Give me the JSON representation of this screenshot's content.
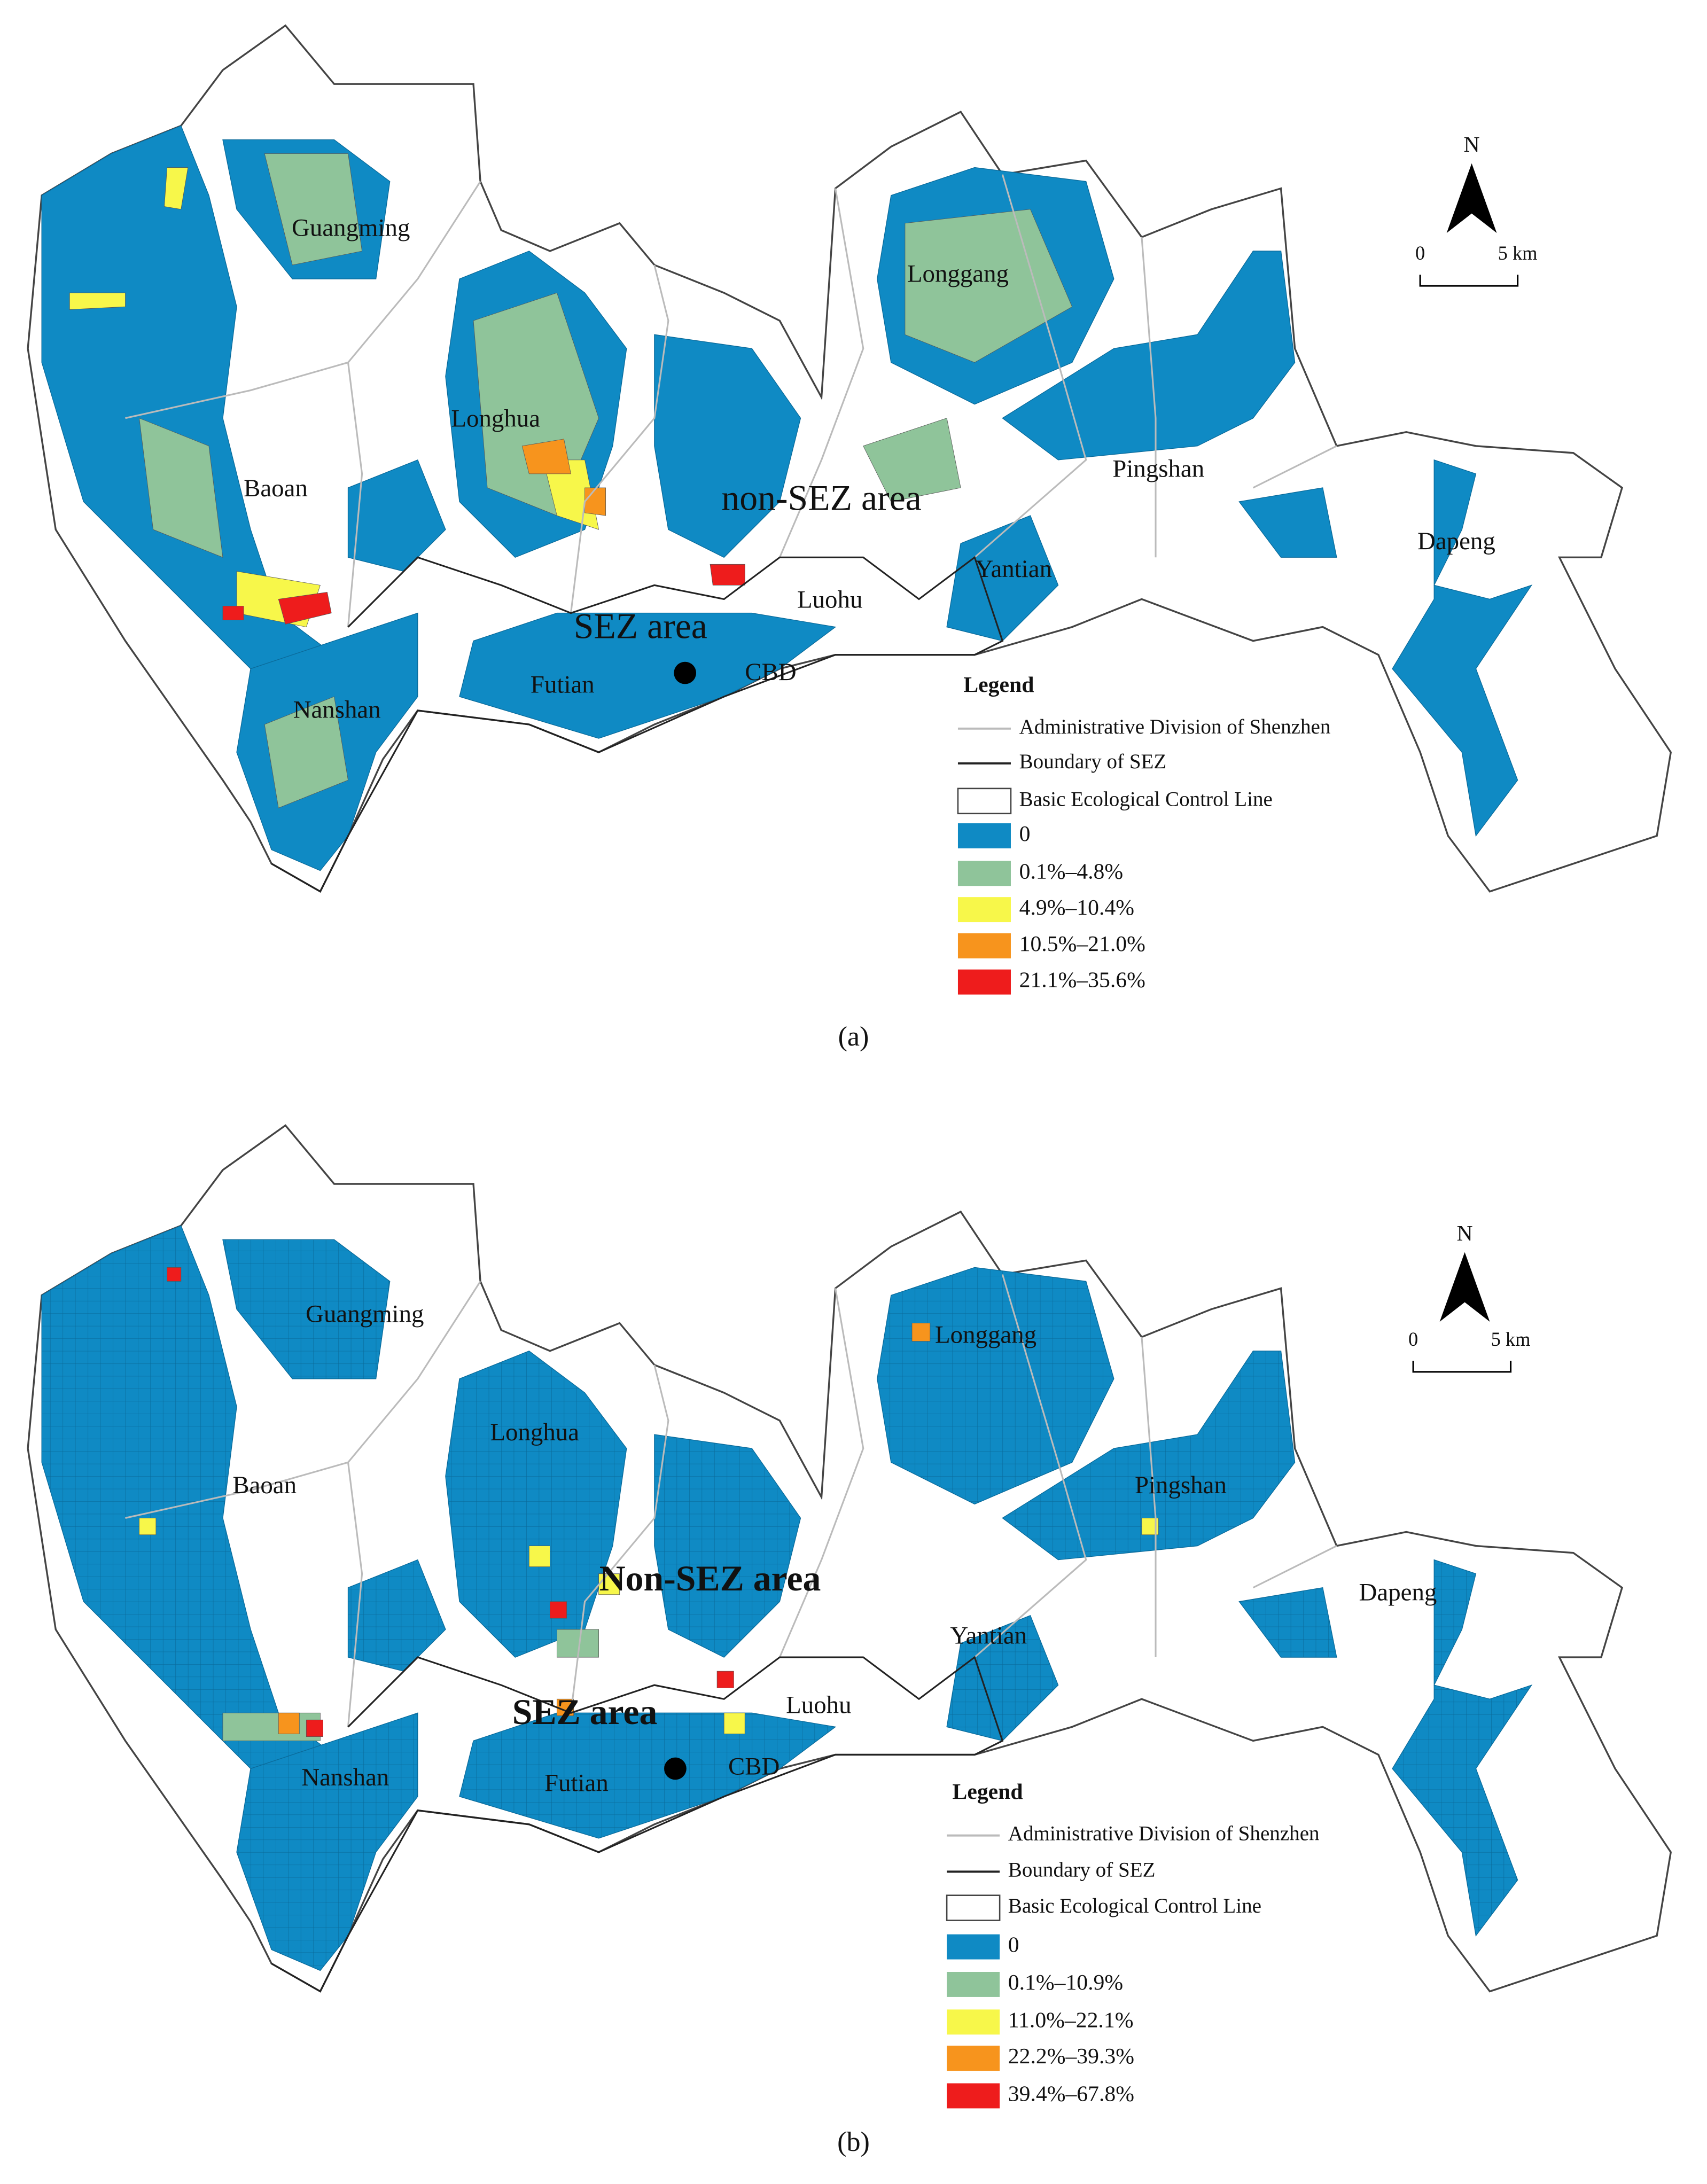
{
  "panels": [
    {
      "caption": "(a)",
      "places": [
        "Guangming",
        "Longgang",
        "Longhua",
        "Pingshan",
        "Baoan",
        "non-SEZ area",
        "Dapeng",
        "Yantian",
        "Luohu",
        "SEZ area",
        "Futian",
        "CBD",
        "Nanshan"
      ],
      "north": "N",
      "scale": [
        "0",
        "5 km"
      ],
      "legend": {
        "title": "Legend",
        "lines": [
          "Administrative Division of Shenzhen",
          "Boundary of SEZ"
        ],
        "ecological": "Basic Ecological Control Line",
        "classes": [
          {
            "label": "0",
            "color": "#0f8ac4"
          },
          {
            "label": "0.1%–4.8%",
            "color": "#8fc49a"
          },
          {
            "label": "4.9%–10.4%",
            "color": "#f7f74a"
          },
          {
            "label": "10.5%–21.0%",
            "color": "#f7941d"
          },
          {
            "label": "21.1%–35.6%",
            "color": "#ee1c1c"
          }
        ]
      }
    },
    {
      "caption": "(b)",
      "places": [
        "Guangming",
        "Longgang",
        "Longhua",
        "Pingshan",
        "Baoan",
        "Non-SEZ area",
        "Dapeng",
        "Yantian",
        "Luohu",
        "SEZ area",
        "Futian",
        "CBD",
        "Nanshan"
      ],
      "north": "N",
      "scale": [
        "0",
        "5 km"
      ],
      "legend": {
        "title": "Legend",
        "lines": [
          "Administrative Division of Shenzhen",
          "Boundary of SEZ"
        ],
        "ecological": "Basic Ecological Control Line",
        "classes": [
          {
            "label": "0",
            "color": "#0f8ac4"
          },
          {
            "label": "0.1%–10.9%",
            "color": "#8fc49a"
          },
          {
            "label": "11.0%–22.1%",
            "color": "#f7f74a"
          },
          {
            "label": "22.2%–39.3%",
            "color": "#f7941d"
          },
          {
            "label": "39.4%–67.8%",
            "color": "#ee1c1c"
          }
        ]
      }
    }
  ]
}
